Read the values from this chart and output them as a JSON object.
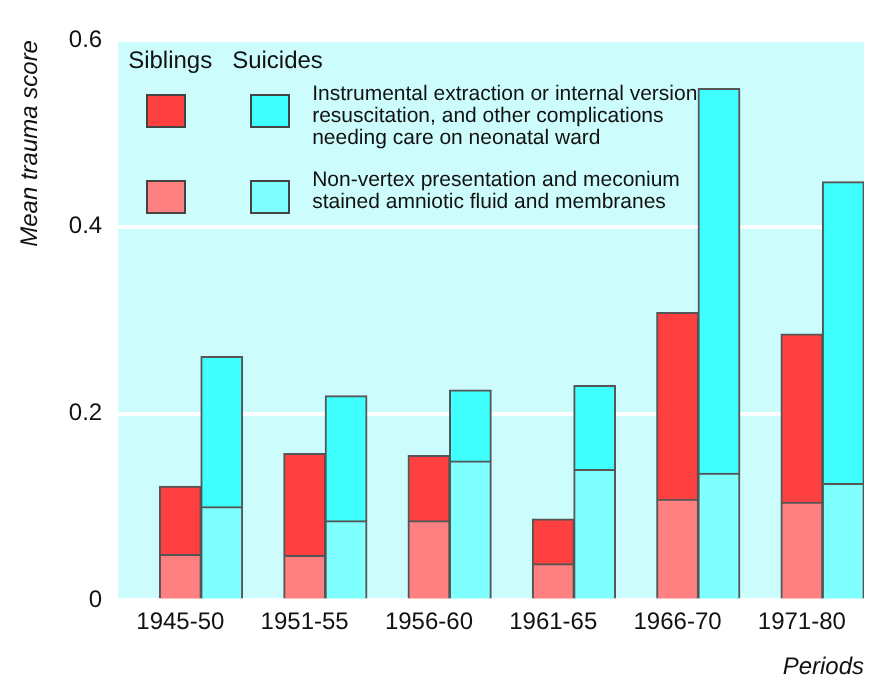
{
  "chart_data": {
    "type": "bar",
    "stacked": true,
    "xlabel": "Periods",
    "ylabel": "Mean trauma score",
    "categories": [
      null,
      "1945-50",
      null,
      null,
      "1951-55",
      null,
      null,
      "1956-60",
      null,
      null,
      "1961-65",
      null,
      null,
      "1966-70",
      null,
      null,
      "1971-80",
      null
    ],
    "series": [
      {
        "name": "Non-vertex presentation and meconium stained amniotic fluid and membranes",
        "colors": [
          null,
          "#ff8080",
          "#80ffff",
          null,
          "#ff8080",
          "#80ffff",
          null,
          "#ff8080",
          "#80ffff",
          null,
          "#ff8080",
          "#80ffff",
          null,
          "#ff8080",
          "#80ffff",
          null,
          "#ff8080",
          "#80ffff"
        ],
        "values": [
          null,
          0.049,
          0.1,
          null,
          0.048,
          0.085,
          null,
          0.085,
          0.149,
          null,
          0.039,
          0.14,
          null,
          0.108,
          0.136,
          null,
          0.105,
          0.125
        ]
      },
      {
        "name": "Instrumental extraction or internal version resuscitation, and other complications needing care on neonatal ward",
        "colors": [
          null,
          "#ff4040",
          "#40ffff",
          null,
          "#ff4040",
          "#40ffff",
          null,
          "#ff4040",
          "#40ffff",
          null,
          "#ff4040",
          "#40ffff",
          null,
          "#ff4040",
          "#40ffff",
          null,
          "#ff4040",
          "#40ffff"
        ],
        "values": [
          null,
          0.073,
          0.161,
          null,
          0.109,
          0.134,
          null,
          0.07,
          0.076,
          null,
          0.048,
          0.09,
          null,
          0.2,
          0.412,
          null,
          0.18,
          0.323
        ]
      }
    ],
    "annotations": [
      "Siblings",
      "Suicides"
    ],
    "ylim": [
      0,
      0.6
    ],
    "yticks": [
      0,
      0.2,
      0.4,
      0.6
    ],
    "grid": "y",
    "legend": "top left"
  }
}
